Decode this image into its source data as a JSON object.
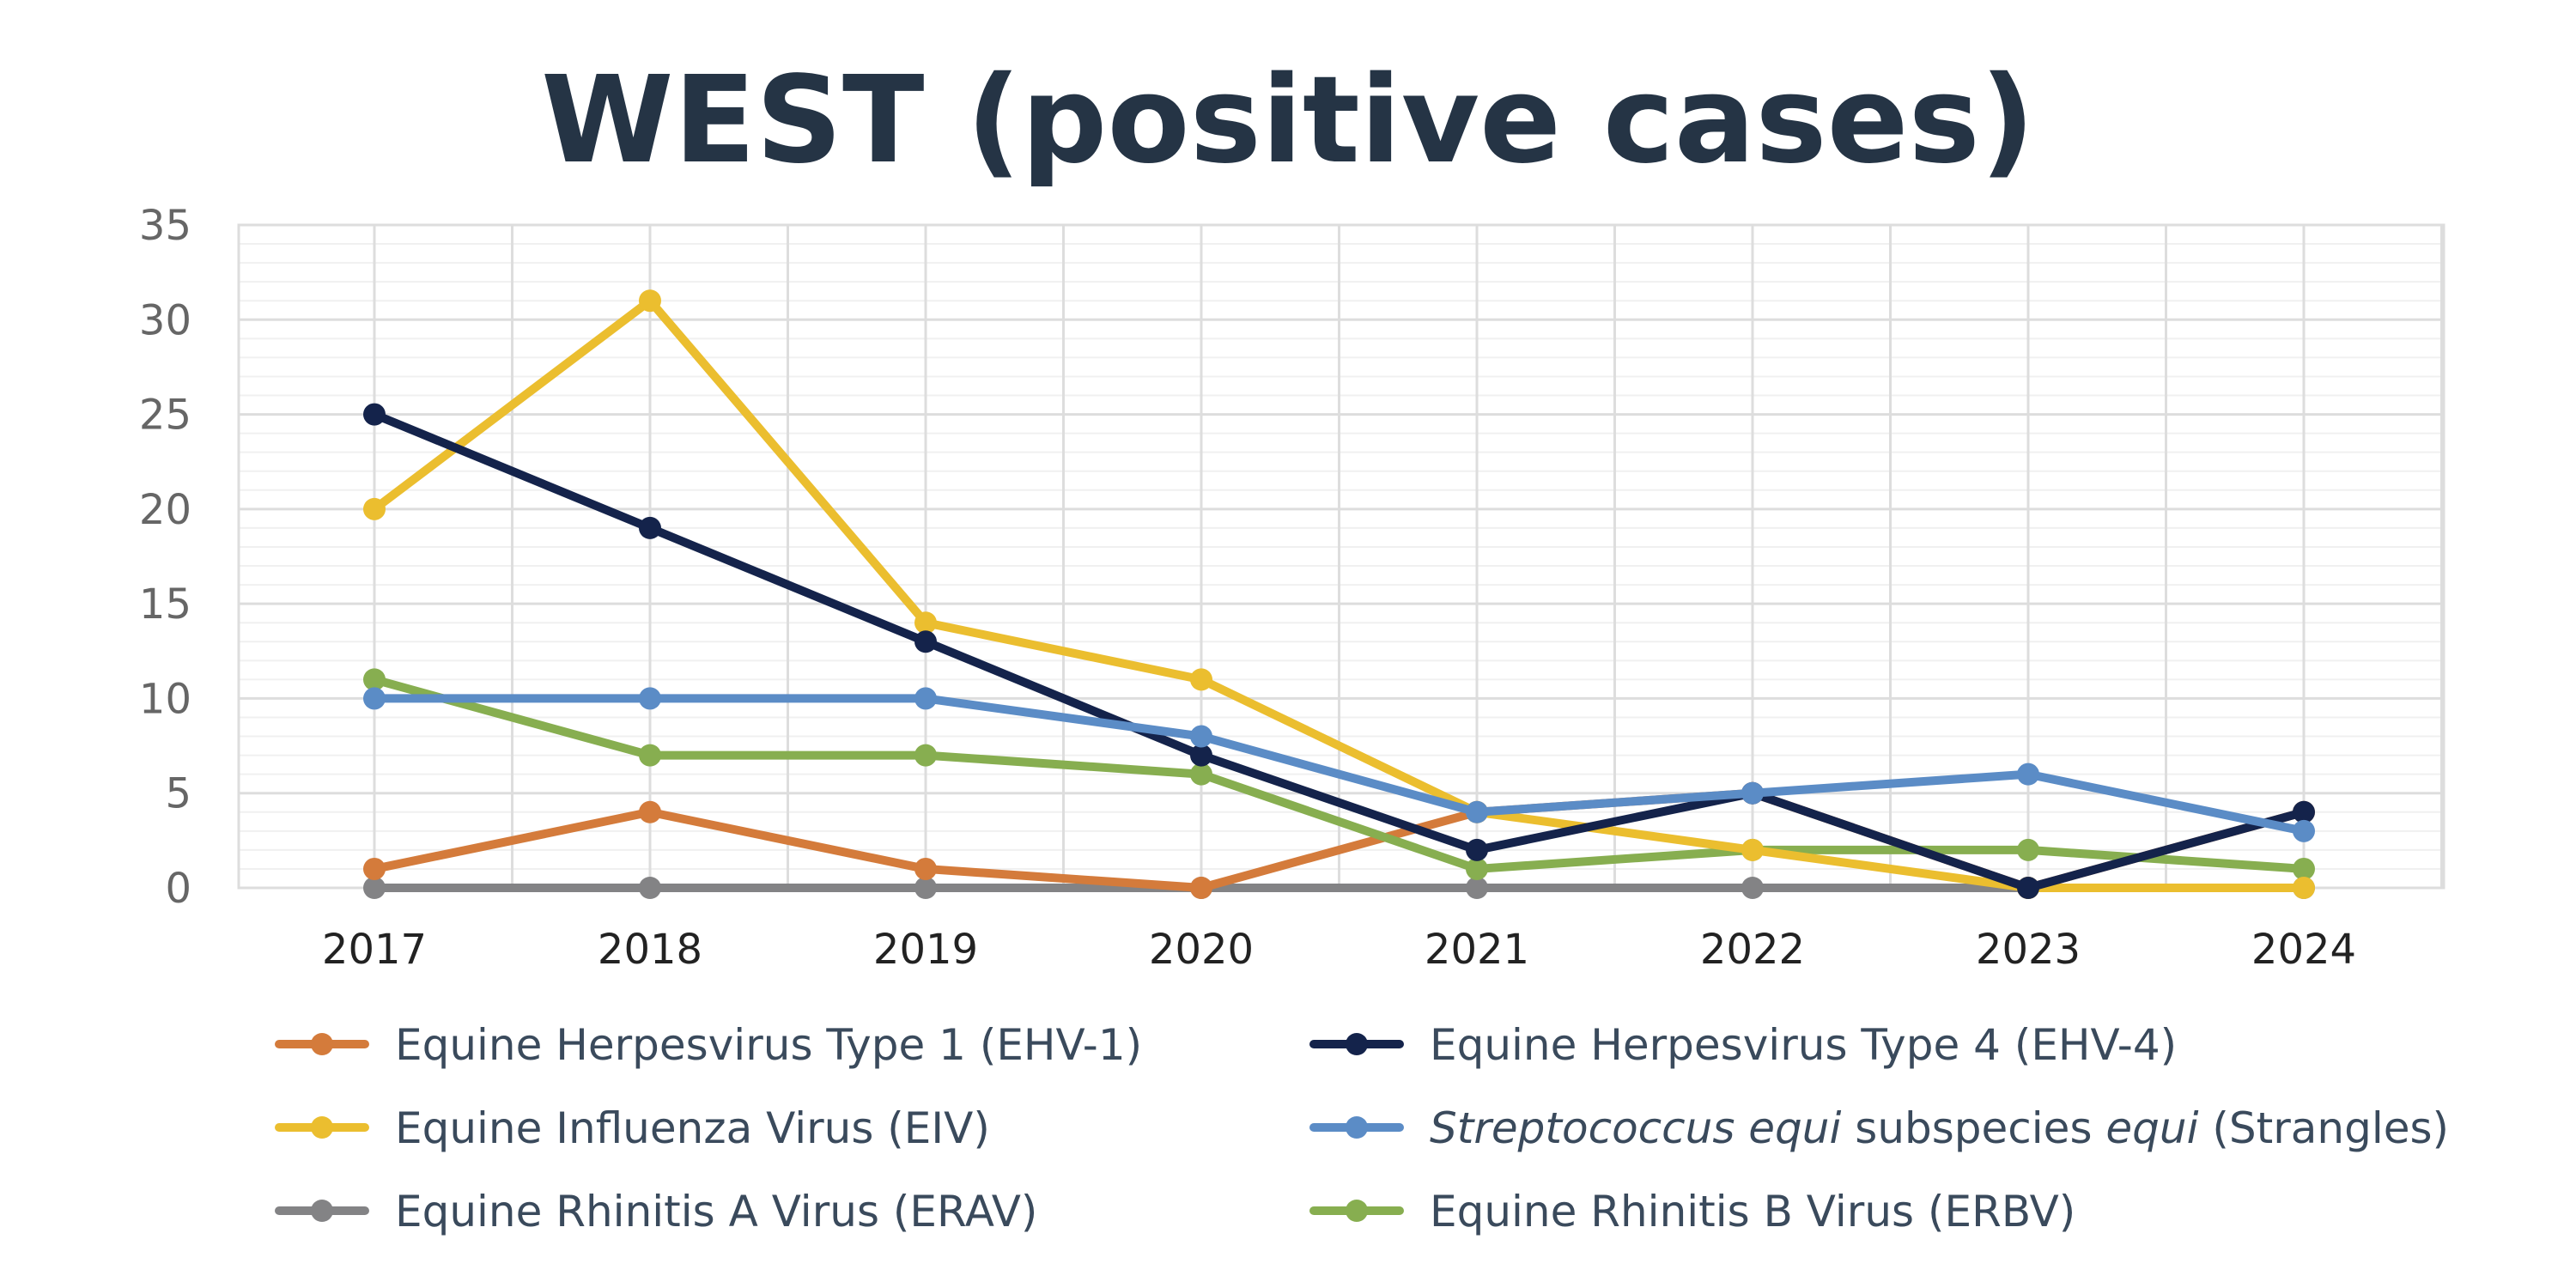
{
  "chart_data": {
    "type": "line",
    "title": "WEST (positive cases)",
    "xlabel": "",
    "ylabel": "",
    "categories": [
      "2017",
      "2018",
      "2019",
      "2020",
      "2021",
      "2022",
      "2023",
      "2024"
    ],
    "ylim": [
      0,
      35
    ],
    "yticks": [
      "0",
      "5",
      "10",
      "15",
      "20",
      "25",
      "30",
      "35"
    ],
    "grid": true,
    "legend_position": "bottom",
    "series": [
      {
        "name": "Equine Herpesvirus Type 1 (EHV-1)",
        "color": "#D47B3B",
        "values": [
          1,
          4,
          1,
          0,
          4,
          5,
          0,
          4
        ]
      },
      {
        "name": "Equine Herpesvirus Type 4 (EHV-4)",
        "color": "#14234B",
        "values": [
          25,
          19,
          13,
          7,
          2,
          5,
          0,
          4
        ]
      },
      {
        "name": "Equine Influenza Virus (EIV)",
        "color": "#EBBE2F",
        "values": [
          20,
          31,
          14,
          11,
          4,
          2,
          0,
          0
        ]
      },
      {
        "name": "Streptococcus equi subspecies equi (Strangles)",
        "color": "#5B8CC6",
        "values": [
          10,
          10,
          10,
          8,
          4,
          5,
          6,
          3
        ],
        "legend_parts": [
          {
            "text": "Streptococcus equi",
            "italic": true
          },
          {
            "text": " subspecies ",
            "italic": false
          },
          {
            "text": "equi",
            "italic": true
          },
          {
            "text": " (Strangles)",
            "italic": false
          }
        ]
      },
      {
        "name": "Equine Rhinitis A Virus (ERAV)",
        "color": "#838385",
        "values": [
          0,
          0,
          0,
          0,
          0,
          0,
          0,
          0
        ]
      },
      {
        "name": "Equine Rhinitis B Virus (ERBV)",
        "color": "#87AE50",
        "values": [
          11,
          7,
          7,
          6,
          1,
          2,
          2,
          1
        ]
      }
    ],
    "colors": {
      "title": "#253445",
      "tick_text": "#666666",
      "x_tick_text": "#222222",
      "legend_text": "#3A4A5C",
      "grid_major": "#DDDDDD",
      "grid_minor": "#F0F0F0"
    }
  }
}
